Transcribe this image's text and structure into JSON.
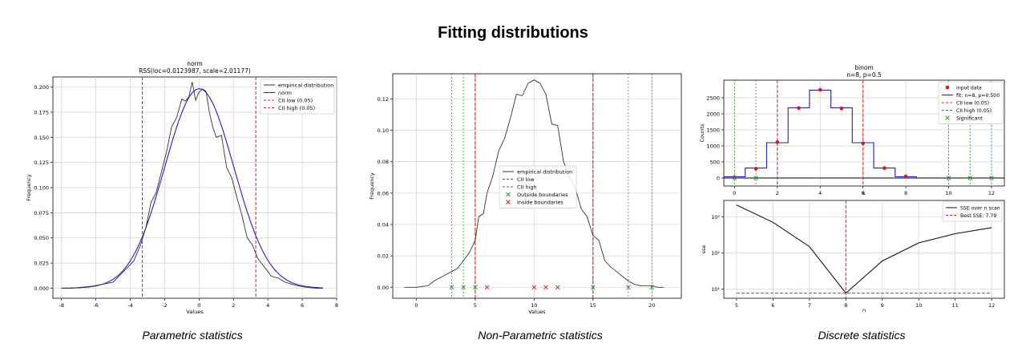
{
  "figure": {
    "title": "Fitting distributions",
    "captions": [
      "Parametric statistics",
      "Non-Parametric statistics",
      "Discrete statistics"
    ]
  },
  "colors": {
    "empirical": "#333333",
    "fit": "#1f1fd6",
    "cii": "#e0201f",
    "significant": "#2c9c2c",
    "grid": "#d0d0d0"
  },
  "chart_data": [
    {
      "id": "norm",
      "type": "line",
      "title": "norm",
      "subtitle": "RSS(loc=0.0123987, scale=2.01177)",
      "xlabel": "Values",
      "ylabel": "Frequency",
      "xlim": [
        -8.5,
        8
      ],
      "ylim": [
        -0.01,
        0.21
      ],
      "xticks": [
        -8,
        -6,
        -4,
        -2,
        0,
        2,
        4,
        6,
        8
      ],
      "yticks": [
        0.0,
        0.025,
        0.05,
        0.075,
        0.1,
        0.125,
        0.15,
        0.175,
        0.2
      ],
      "ytick_labels": [
        "0.000",
        "0.025",
        "0.050",
        "0.075",
        "0.100",
        "0.125",
        "0.150",
        "0.175",
        "0.200"
      ],
      "grid": true,
      "legend": {
        "placement": "top-right",
        "entries": [
          "empirical distribution",
          "norm",
          "CII low (0.05)",
          "CII high (0.05)"
        ]
      },
      "series": [
        {
          "name": "empirical distribution",
          "x": [
            -8,
            -7.4,
            -6.8,
            -6.2,
            -5.6,
            -5,
            -4.6,
            -4.2,
            -3.8,
            -3.4,
            -3.1,
            -2.8,
            -2.5,
            -2.2,
            -1.9,
            -1.6,
            -1.3,
            -1.0,
            -0.8,
            -0.6,
            -0.4,
            -0.2,
            0.0,
            0.2,
            0.4,
            0.6,
            0.8,
            1.0,
            1.3,
            1.6,
            1.9,
            2.2,
            2.5,
            2.8,
            3.1,
            3.4,
            3.8,
            4.2,
            4.6,
            5.0,
            5.6,
            6.2,
            6.8,
            7.2
          ],
          "y": [
            0.0,
            0.0,
            0.001,
            0.002,
            0.004,
            0.006,
            0.013,
            0.02,
            0.027,
            0.043,
            0.06,
            0.085,
            0.095,
            0.115,
            0.135,
            0.16,
            0.17,
            0.188,
            0.186,
            0.19,
            0.205,
            0.187,
            0.195,
            0.198,
            0.196,
            0.175,
            0.16,
            0.15,
            0.152,
            0.12,
            0.11,
            0.09,
            0.072,
            0.05,
            0.043,
            0.03,
            0.021,
            0.012,
            0.01,
            0.006,
            0.003,
            0.001,
            0.0,
            0.0
          ]
        },
        {
          "name": "norm",
          "function": "normal_pdf",
          "loc": 0.0123987,
          "scale": 2.01177,
          "range": [
            -8,
            7.2
          ]
        }
      ],
      "vlines": [
        {
          "name": "CII low (0.05)",
          "x": -3.3
        },
        {
          "name": "CII high (0.05)",
          "x": 3.3
        }
      ]
    },
    {
      "id": "nonparametric",
      "type": "line",
      "xlabel": "Values",
      "ylabel": "Frequency",
      "xlim": [
        -2,
        22.5
      ],
      "ylim": [
        -0.007,
        0.136
      ],
      "xticks": [
        0,
        5,
        10,
        15,
        20
      ],
      "yticks": [
        0.0,
        0.02,
        0.04,
        0.06,
        0.08,
        0.1,
        0.12
      ],
      "ytick_labels": [
        "0.00",
        "0.02",
        "0.04",
        "0.06",
        "0.08",
        "0.10",
        "0.12"
      ],
      "grid": true,
      "legend": {
        "placement": "center",
        "entries": [
          "empirical distribution",
          "CII low",
          "CII high",
          "Outside boundaries",
          "Inside boundaries"
        ]
      },
      "series": [
        {
          "name": "empirical distribution",
          "x": [
            -1,
            0,
            1,
            1.5,
            2,
            2.5,
            3,
            3.5,
            4,
            4.5,
            5,
            5.3,
            5.7,
            6,
            6.5,
            7,
            7.5,
            8,
            8.5,
            9,
            9.5,
            10,
            10.5,
            11,
            11.5,
            12,
            12.5,
            13,
            13.5,
            14,
            14.5,
            15,
            15.5,
            16,
            16.5,
            17,
            17.5,
            18,
            18.5,
            19,
            19.5,
            20,
            20.5,
            21
          ],
          "y": [
            0.0,
            0.0,
            0.001,
            0.004,
            0.006,
            0.008,
            0.01,
            0.012,
            0.017,
            0.022,
            0.03,
            0.045,
            0.047,
            0.06,
            0.071,
            0.087,
            0.095,
            0.108,
            0.123,
            0.122,
            0.13,
            0.132,
            0.13,
            0.123,
            0.104,
            0.103,
            0.08,
            0.07,
            0.063,
            0.05,
            0.045,
            0.033,
            0.03,
            0.017,
            0.013,
            0.01,
            0.007,
            0.004,
            0.002,
            0.001,
            0.001,
            0.001,
            0.0,
            0.0
          ]
        }
      ],
      "vlines": [
        {
          "name": "CII low",
          "x": 5
        },
        {
          "name": "CII high",
          "x": 15
        }
      ],
      "green_vlines": [
        3,
        4,
        5,
        15,
        18,
        20
      ],
      "outside_points": {
        "name": "Outside boundaries",
        "x": [
          3,
          4,
          5,
          15,
          18,
          20
        ],
        "y": [
          0,
          0,
          0,
          0,
          0,
          0
        ]
      },
      "inside_points": {
        "name": "Inside boundaries",
        "x": [
          6,
          10,
          11,
          12
        ],
        "y": [
          0,
          0,
          0,
          0
        ]
      }
    },
    {
      "id": "binom",
      "type": "bar",
      "title": "binom",
      "subtitle": "n=8, p=0.5",
      "xlabel": "k",
      "ylabel": "Counts",
      "xlim": [
        -0.5,
        12.6
      ],
      "ylim": [
        -250,
        3050
      ],
      "xticks": [
        0,
        2,
        4,
        6,
        8,
        10,
        12
      ],
      "yticks": [
        0,
        500,
        1000,
        1500,
        2000,
        2500
      ],
      "grid": true,
      "legend": {
        "placement": "top-right",
        "entries": [
          "input data",
          "fit: n=8, p=0.500",
          "CII low (0.05)",
          "CII high (0.05)",
          "Significant"
        ]
      },
      "input_data": {
        "k": [
          0,
          1,
          2,
          3,
          4,
          5,
          6,
          7,
          8
        ],
        "counts": [
          20,
          290,
          1120,
          2180,
          2750,
          2170,
          1080,
          310,
          50
        ]
      },
      "fit_counts": [
        40,
        310,
        1100,
        2190,
        2740,
        2190,
        1100,
        310,
        40
      ],
      "vlines": [
        {
          "name": "CII low (0.05)",
          "x": 2
        },
        {
          "name": "CII high (0.05)",
          "x": 6
        }
      ],
      "significant": {
        "name": "Significant",
        "k": [
          0,
          1,
          10,
          11,
          12
        ]
      }
    },
    {
      "id": "sse",
      "type": "line",
      "xlabel": "n",
      "ylabel": "sse",
      "log_y": true,
      "xlim": [
        4.65,
        12.35
      ],
      "ylim_log10": [
        0.75,
        3.45
      ],
      "xticks": [
        5,
        6,
        7,
        8,
        9,
        10,
        11,
        12
      ],
      "ytick_labels": [
        "10¹",
        "10²",
        "10³"
      ],
      "grid": true,
      "legend": {
        "placement": "top-right",
        "entries": [
          "SSE over n scan",
          "Best SSE: 7.79"
        ]
      },
      "series": [
        {
          "name": "SSE over n scan",
          "x": [
            5,
            6,
            7,
            8,
            9,
            10,
            11,
            12
          ],
          "y": [
            2100,
            700,
            150,
            7.79,
            60,
            190,
            340,
            500
          ]
        }
      ],
      "best": {
        "name": "Best SSE: 7.79",
        "n": 8,
        "sse": 7.79
      }
    }
  ]
}
